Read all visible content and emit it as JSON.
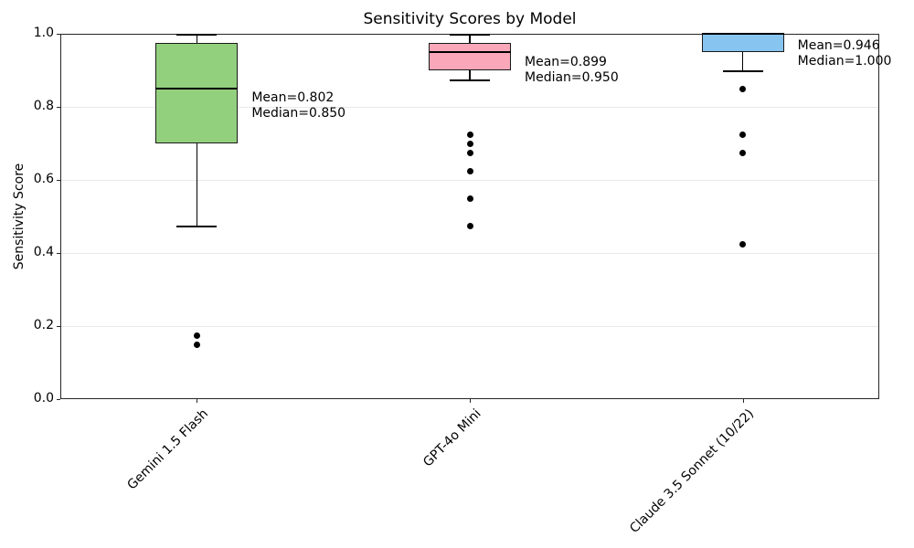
{
  "chart_data": {
    "type": "boxplot",
    "title": "Sensitivity Scores by Model",
    "xlabel": "",
    "ylabel": "Sensitivity Score",
    "ylim": [
      0.0,
      1.0
    ],
    "yticks": [
      {
        "value": 0.0,
        "label": "0.0"
      },
      {
        "value": 0.2,
        "label": "0.2"
      },
      {
        "value": 0.4,
        "label": "0.4"
      },
      {
        "value": 0.6,
        "label": "0.6"
      },
      {
        "value": 0.8,
        "label": "0.8"
      },
      {
        "value": 1.0,
        "label": "1.0"
      }
    ],
    "grid": "horizontal",
    "legend": "none",
    "colors": {
      "edge": "#1a1a1a",
      "line": "#000000",
      "grid": "#e8e8e8",
      "spine": "#262626",
      "outlier": "#000000",
      "background": "#ffffff"
    },
    "categories": [
      "Gemini 1.5 Flash",
      "GPT-4o Mini",
      "Claude 3.5 Sonnet (10/22)"
    ],
    "series": [
      {
        "name": "Gemini 1.5 Flash",
        "fill_color": "#93d07e",
        "whisker_low": 0.475,
        "q1": 0.7,
        "median": 0.85,
        "q3": 0.975,
        "whisker_high": 1.0,
        "outliers": [
          0.175,
          0.15
        ],
        "mean": 0.802,
        "annotation_lines": [
          "Mean=0.802",
          "Median=0.850"
        ]
      },
      {
        "name": "GPT-4o Mini",
        "fill_color": "#f9a7b9",
        "whisker_low": 0.875,
        "q1": 0.9,
        "median": 0.95,
        "q3": 0.975,
        "whisker_high": 1.0,
        "outliers": [
          0.725,
          0.7,
          0.675,
          0.625,
          0.55,
          0.475
        ],
        "mean": 0.899,
        "annotation_lines": [
          "Mean=0.899",
          "Median=0.950"
        ]
      },
      {
        "name": "Claude 3.5 Sonnet (10/22)",
        "fill_color": "#87c4f0",
        "whisker_low": 0.9,
        "q1": 0.95,
        "median": 1.0,
        "q3": 1.0,
        "whisker_high": 1.0,
        "outliers": [
          0.85,
          0.725,
          0.675,
          0.425
        ],
        "mean": 0.946,
        "annotation_lines": [
          "Mean=0.946",
          "Median=1.000"
        ]
      }
    ]
  }
}
